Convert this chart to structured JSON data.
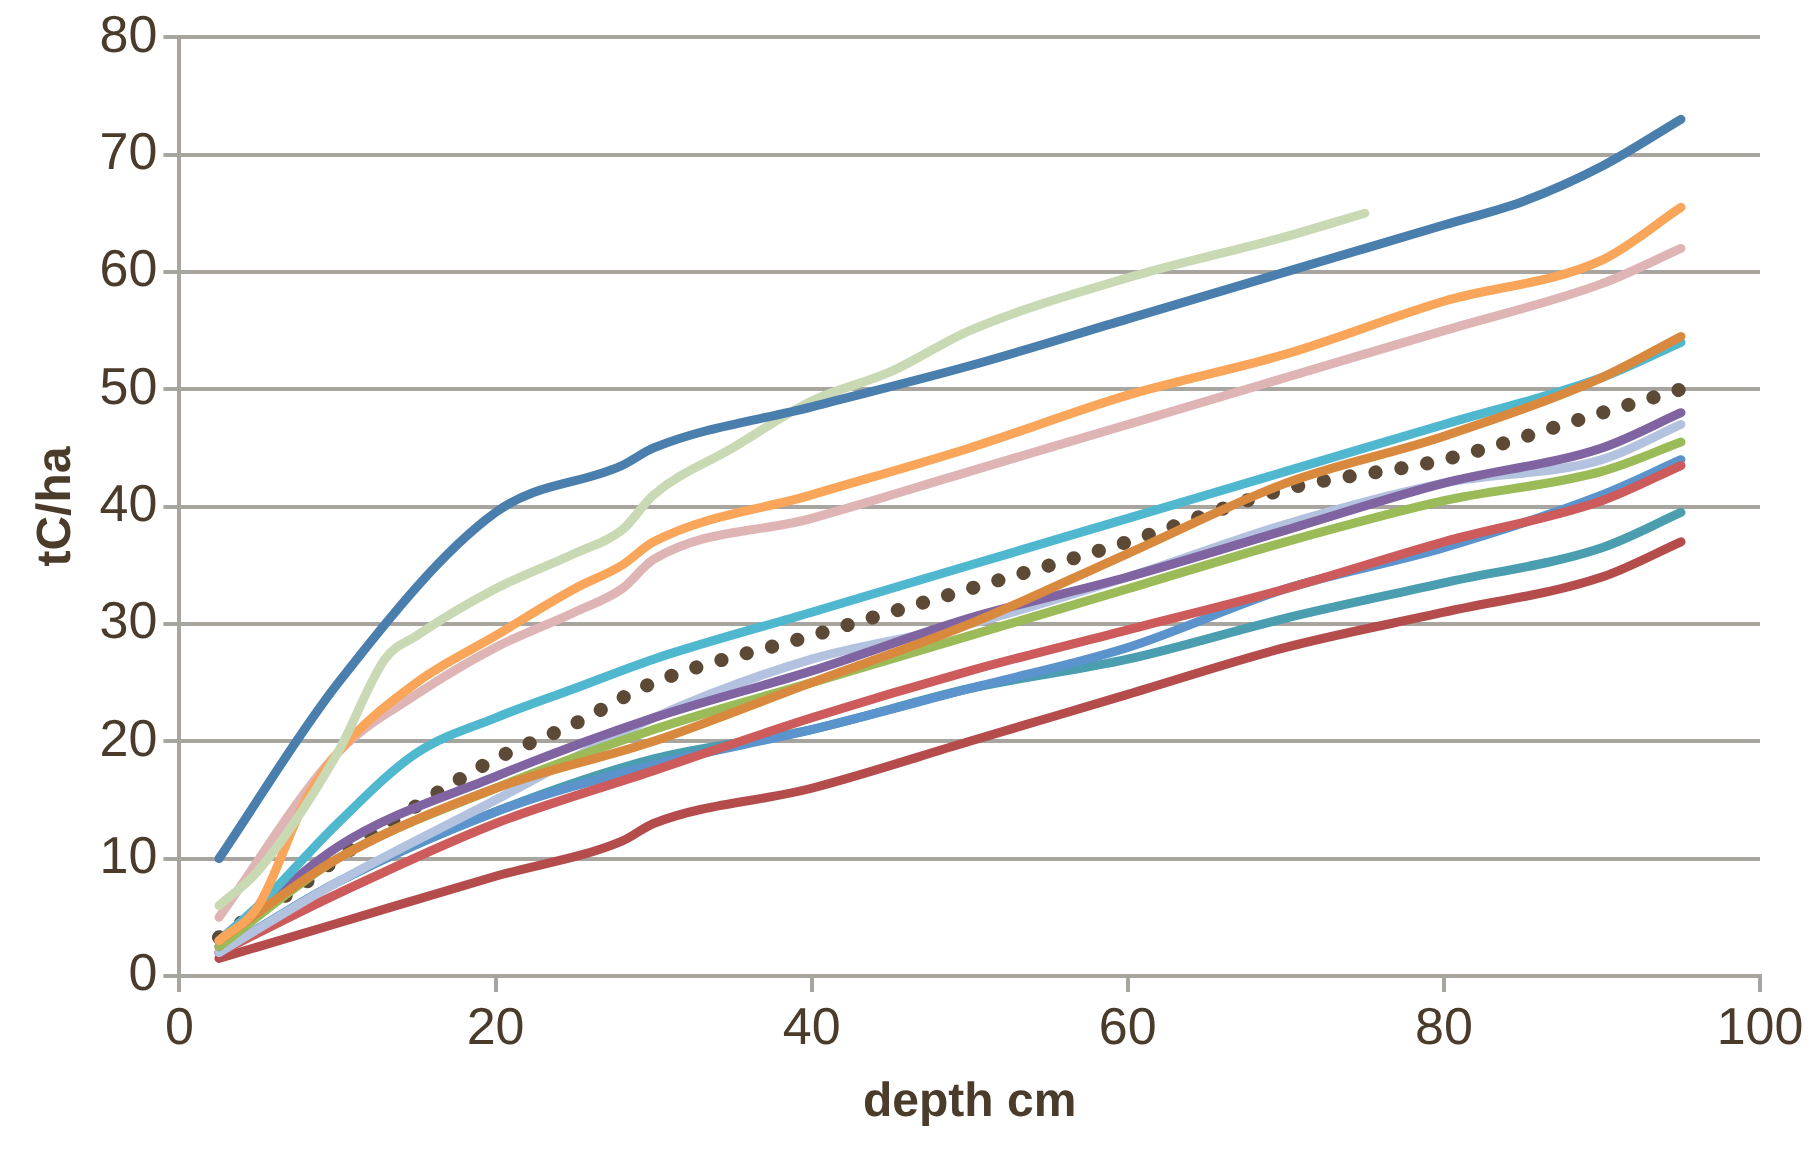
{
  "chart_data": {
    "type": "line",
    "xlabel": "depth cm",
    "ylabel": "tC/ha",
    "xlim": [
      0,
      100
    ],
    "xticks": [
      0,
      20,
      40,
      60,
      80,
      100
    ],
    "ylim": [
      0,
      80
    ],
    "yticks": [
      0,
      10,
      20,
      30,
      40,
      50,
      60,
      70,
      80
    ],
    "grid": "y",
    "legend": false,
    "marker": "none",
    "series": [
      {
        "color": "#4a7ead",
        "x": [
          2.5,
          10,
          20,
          28,
          30,
          40,
          50,
          60,
          70,
          80,
          85,
          90,
          95
        ],
        "values": [
          10,
          24.9,
          39.5,
          43.5,
          45,
          48.5,
          52,
          56,
          60,
          64,
          66,
          69,
          73
        ]
      },
      {
        "color": "#c9d9b4",
        "x": [
          2.5,
          5,
          10,
          13,
          15,
          20,
          25,
          28,
          30,
          35,
          40,
          45,
          50,
          60,
          70,
          75
        ],
        "values": [
          6,
          9,
          19,
          27,
          29,
          33,
          36,
          38,
          41,
          45,
          49,
          51.5,
          55,
          59.5,
          63,
          65
        ]
      },
      {
        "color": "#f9a55a",
        "x": [
          2.5,
          5,
          8,
          10,
          15,
          20,
          25,
          28,
          30,
          40,
          50,
          60,
          70,
          80,
          90,
          95
        ],
        "values": [
          3,
          6,
          15,
          19,
          25,
          29,
          33,
          35,
          37,
          41,
          45,
          49.5,
          53,
          57.5,
          61,
          65.5
        ]
      },
      {
        "color": "#dfb4b4",
        "x": [
          2.5,
          10,
          15,
          20,
          25,
          28,
          30,
          40,
          50,
          60,
          70,
          80,
          90,
          95
        ],
        "values": [
          5,
          19,
          24,
          28,
          31,
          33,
          35.5,
          39,
          43,
          47,
          51,
          55,
          59,
          62
        ]
      },
      {
        "color": "#d9893e",
        "x": [
          2.5,
          10,
          20,
          30,
          40,
          50,
          60,
          70,
          80,
          90,
          95
        ],
        "values": [
          3,
          10,
          16,
          20,
          25,
          30,
          36,
          42,
          46,
          51,
          54.5
        ]
      },
      {
        "color": "#4fb8cf",
        "x": [
          2.5,
          5,
          10,
          15,
          20,
          25,
          30,
          40,
          50,
          60,
          70,
          80,
          90,
          95
        ],
        "values": [
          3,
          6,
          13,
          19,
          22,
          24.5,
          27,
          31,
          35,
          39,
          43,
          47,
          51,
          54
        ]
      },
      {
        "color": "#9bbb59",
        "x": [
          2.5,
          10,
          20,
          30,
          40,
          50,
          60,
          70,
          80,
          90,
          95
        ],
        "values": [
          2.5,
          10,
          16,
          21,
          25,
          29,
          33,
          37,
          40.5,
          43,
          45.5
        ]
      },
      {
        "color": "#8064a2",
        "x": [
          2.5,
          10,
          20,
          30,
          40,
          50,
          60,
          70,
          80,
          90,
          95
        ],
        "values": [
          2.5,
          11,
          17,
          22,
          26,
          30.5,
          34,
          38,
          42,
          45,
          48
        ]
      },
      {
        "color": "#b3c3df",
        "x": [
          2.5,
          10,
          20,
          30,
          40,
          50,
          60,
          70,
          80,
          90,
          95
        ],
        "values": [
          2,
          8,
          15,
          22,
          27,
          30,
          34,
          38.5,
          42,
          44,
          47
        ]
      },
      {
        "color": "#cd5b5b",
        "x": [
          2.5,
          10,
          20,
          30,
          40,
          50,
          60,
          70,
          80,
          90,
          95
        ],
        "values": [
          2,
          7,
          13,
          17.5,
          22,
          26,
          29.5,
          33,
          37,
          40.5,
          43.5
        ]
      },
      {
        "color": "#5b93cc",
        "x": [
          2.5,
          10,
          20,
          30,
          40,
          50,
          60,
          70,
          80,
          90,
          95
        ],
        "values": [
          2,
          8,
          14,
          18,
          21,
          24.5,
          28,
          33,
          36.5,
          41,
          44
        ]
      },
      {
        "color": "#4a9eb0",
        "x": [
          2.5,
          10,
          20,
          30,
          40,
          50,
          60,
          70,
          80,
          90,
          95
        ],
        "values": [
          2,
          8,
          14,
          18.5,
          21,
          24.5,
          27,
          30.5,
          33.5,
          36.5,
          39.5
        ]
      },
      {
        "color": "#b44c4c",
        "x": [
          2.5,
          10,
          20,
          28,
          30,
          40,
          50,
          60,
          70,
          80,
          90,
          95
        ],
        "values": [
          1.5,
          4.5,
          8.5,
          11.5,
          13,
          16,
          20,
          24,
          28,
          31,
          34,
          37
        ]
      },
      {
        "color": "#5c4a36",
        "line_style": "dotted",
        "x": [
          2.5,
          5,
          7.5,
          10,
          15,
          20,
          25,
          30,
          40,
          50,
          60,
          70,
          80,
          90,
          95
        ],
        "values": [
          3.3,
          5.5,
          7.5,
          10,
          14.5,
          18.5,
          21.5,
          25,
          29,
          33,
          37,
          41.5,
          44,
          48,
          50
        ]
      }
    ]
  }
}
